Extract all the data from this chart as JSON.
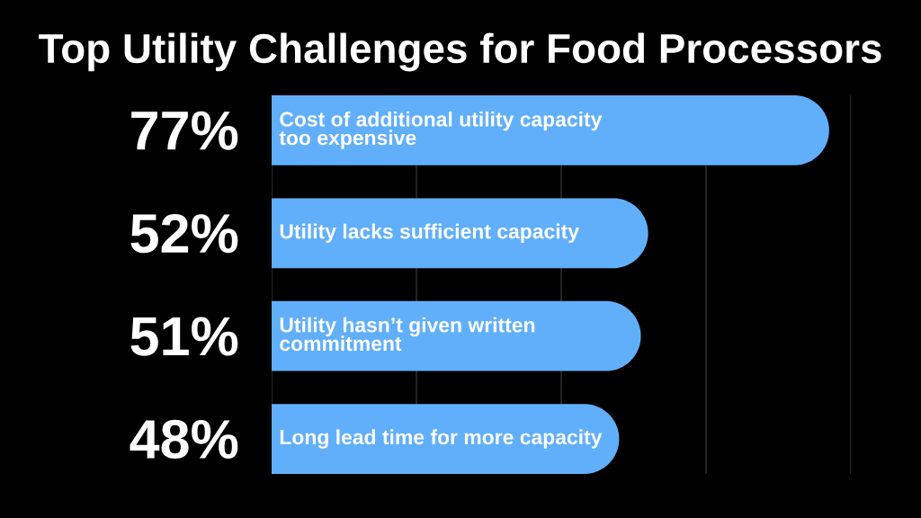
{
  "chart_data": {
    "type": "bar",
    "orientation": "horizontal",
    "title": "Top Utility Challenges for Food Processors",
    "categories": [
      "Cost of additional utility capacity\ntoo expensive",
      "Utility lacks sufficient capacity",
      "Utility hasn’t given written\ncommitment",
      "Long lead time for more capacity"
    ],
    "values": [
      77,
      52,
      51,
      48
    ],
    "value_labels": [
      "77%",
      "52%",
      "51%",
      "48%"
    ],
    "color": "#61affa",
    "xlim": [
      0,
      80
    ],
    "xticks": [
      {
        "value": 0,
        "label": null
      },
      {
        "value": 20,
        "label": null
      },
      {
        "value": 40,
        "label": null
      },
      {
        "value": 60,
        "label": null
      },
      {
        "value": 80,
        "label": null
      }
    ],
    "grid": "x",
    "legend": false
  }
}
